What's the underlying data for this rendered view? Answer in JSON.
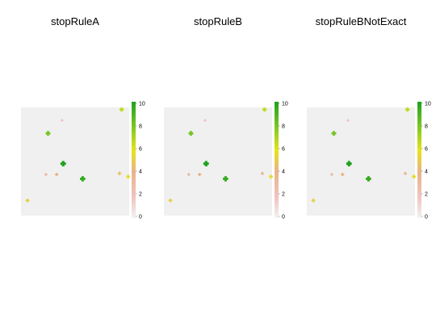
{
  "chart_data": [
    {
      "type": "scatter",
      "title": "stopRuleA",
      "xlim": [
        0,
        10
      ],
      "ylim": [
        0,
        10
      ],
      "legend": {
        "position": "right",
        "ticks": [
          0,
          2,
          4,
          6,
          8,
          10
        ]
      },
      "points": [
        {
          "x": 9.3,
          "y": 9.8,
          "value": 6.5
        },
        {
          "x": 3.8,
          "y": 8.8,
          "value": 2.0
        },
        {
          "x": 2.5,
          "y": 7.6,
          "value": 8.0
        },
        {
          "x": 3.9,
          "y": 4.8,
          "value": 10.0
        },
        {
          "x": 2.3,
          "y": 3.8,
          "value": 3.0
        },
        {
          "x": 3.3,
          "y": 3.8,
          "value": 4.0
        },
        {
          "x": 5.7,
          "y": 3.4,
          "value": 9.5
        },
        {
          "x": 9.1,
          "y": 3.9,
          "value": 4.5
        },
        {
          "x": 9.9,
          "y": 3.6,
          "value": 5.5
        },
        {
          "x": 0.6,
          "y": 1.4,
          "value": 5.0
        }
      ]
    },
    {
      "type": "scatter",
      "title": "stopRuleB",
      "xlim": [
        0,
        10
      ],
      "ylim": [
        0,
        10
      ],
      "legend": {
        "position": "right",
        "ticks": [
          0,
          2,
          4,
          6,
          8,
          10
        ]
      },
      "points": [
        {
          "x": 9.3,
          "y": 9.8,
          "value": 6.5
        },
        {
          "x": 3.8,
          "y": 8.8,
          "value": 2.0
        },
        {
          "x": 2.5,
          "y": 7.6,
          "value": 8.0
        },
        {
          "x": 3.9,
          "y": 4.8,
          "value": 10.0
        },
        {
          "x": 2.3,
          "y": 3.8,
          "value": 3.0
        },
        {
          "x": 3.3,
          "y": 3.8,
          "value": 4.0
        },
        {
          "x": 5.7,
          "y": 3.4,
          "value": 9.5
        },
        {
          "x": 9.1,
          "y": 3.9,
          "value": 3.5
        },
        {
          "x": 9.9,
          "y": 3.6,
          "value": 5.5
        },
        {
          "x": 0.6,
          "y": 1.4,
          "value": 5.0
        }
      ]
    },
    {
      "type": "scatter",
      "title": "stopRuleBNotExact",
      "xlim": [
        0,
        10
      ],
      "ylim": [
        0,
        10
      ],
      "legend": {
        "position": "right",
        "ticks": [
          0,
          2,
          4,
          6,
          8,
          10
        ]
      },
      "points": [
        {
          "x": 9.3,
          "y": 9.8,
          "value": 6.5
        },
        {
          "x": 3.8,
          "y": 8.8,
          "value": 2.0
        },
        {
          "x": 2.5,
          "y": 7.6,
          "value": 8.0
        },
        {
          "x": 3.9,
          "y": 4.8,
          "value": 10.0
        },
        {
          "x": 2.3,
          "y": 3.8,
          "value": 3.0
        },
        {
          "x": 3.3,
          "y": 3.8,
          "value": 4.0
        },
        {
          "x": 5.7,
          "y": 3.4,
          "value": 9.5
        },
        {
          "x": 9.1,
          "y": 3.9,
          "value": 3.5
        },
        {
          "x": 9.9,
          "y": 3.6,
          "value": 5.5
        },
        {
          "x": 0.6,
          "y": 1.4,
          "value": 5.0
        }
      ]
    }
  ],
  "colors": {
    "panel_background": "#f0f0f0",
    "scale_low": "#f2f2f2",
    "scale_pink": "#efc3c0",
    "scale_peach": "#e8b48a",
    "scale_yellow": "#e6e41a",
    "scale_lime": "#7ec823",
    "scale_high": "#1ea21e"
  }
}
